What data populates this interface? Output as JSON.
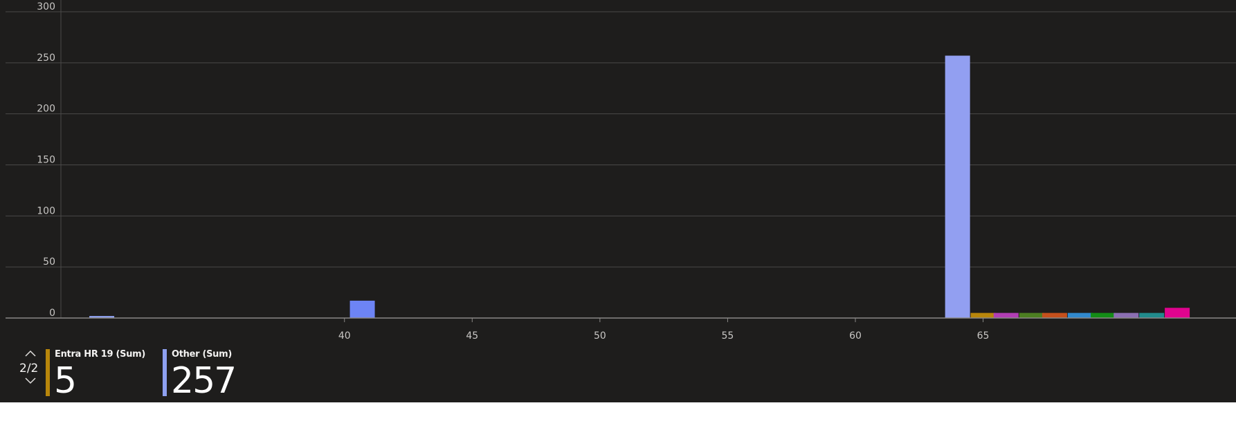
{
  "chart_data": {
    "type": "bar",
    "x_ticks": [
      40,
      45,
      50,
      55,
      60,
      65
    ],
    "xlim": [
      28.9,
      74.9
    ],
    "y_ticks": [
      0,
      50,
      100,
      150,
      200,
      250,
      300
    ],
    "ylim": [
      0,
      300
    ],
    "grid": true,
    "bars": [
      {
        "x": 30.5,
        "value": 2,
        "color": "#8ea0f0"
      },
      {
        "x": 40.7,
        "value": 17,
        "color": "#6d84f5"
      },
      {
        "x": 64.0,
        "value": 257,
        "color": "#929ff1"
      },
      {
        "x": 65.0,
        "value": 5,
        "color": "#b8860b"
      },
      {
        "x": 65.9,
        "value": 5,
        "color": "#b13eb4"
      },
      {
        "x": 66.9,
        "value": 5,
        "color": "#4c7e21"
      },
      {
        "x": 67.8,
        "value": 5,
        "color": "#c5501c"
      },
      {
        "x": 68.8,
        "value": 5,
        "color": "#3189cd"
      },
      {
        "x": 69.7,
        "value": 5,
        "color": "#138c16"
      },
      {
        "x": 70.6,
        "value": 5,
        "color": "#8b6fb2"
      },
      {
        "x": 71.6,
        "value": 5,
        "color": "#218b8c"
      },
      {
        "x": 72.6,
        "value": 10,
        "color": "#e0038e"
      }
    ]
  },
  "legend": {
    "page_indicator": "2/2",
    "items": [
      {
        "name": "Entra HR 19 (Sum)",
        "value": "5",
        "color": "#b8860b"
      },
      {
        "name": "Other (Sum)",
        "value": "257",
        "color": "#8ea0f0"
      }
    ]
  },
  "colors": {
    "background": "#1e1d1c",
    "gridline": "#4a4948",
    "axis": "#8a8886",
    "text": "#c8c6c4"
  }
}
